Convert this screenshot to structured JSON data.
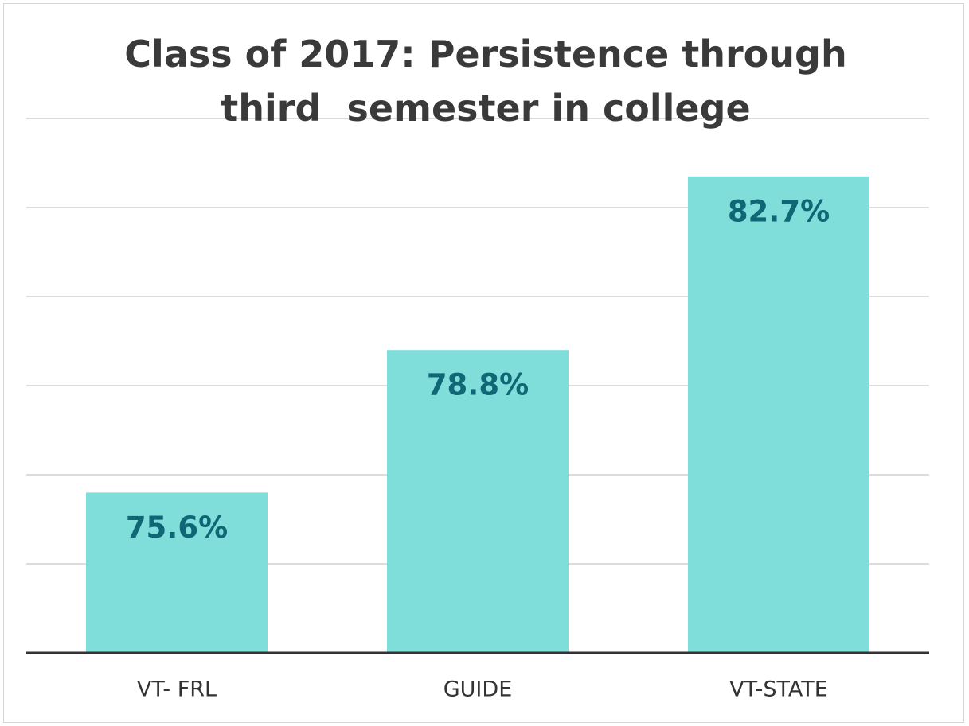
{
  "chart_data": {
    "type": "bar",
    "title": "Class of 2017: Persistence through third  semester in college",
    "categories": [
      "VT- FRL",
      "GUIDE",
      "VT-STATE"
    ],
    "values": [
      75.6,
      78.8,
      82.7
    ],
    "value_labels": [
      "75.6%",
      "78.8%",
      "82.7%"
    ],
    "color": "#80deda",
    "ylim": [
      72,
      84
    ],
    "yticks": [
      72,
      74,
      76,
      78,
      80,
      82,
      84
    ],
    "grid": true
  }
}
